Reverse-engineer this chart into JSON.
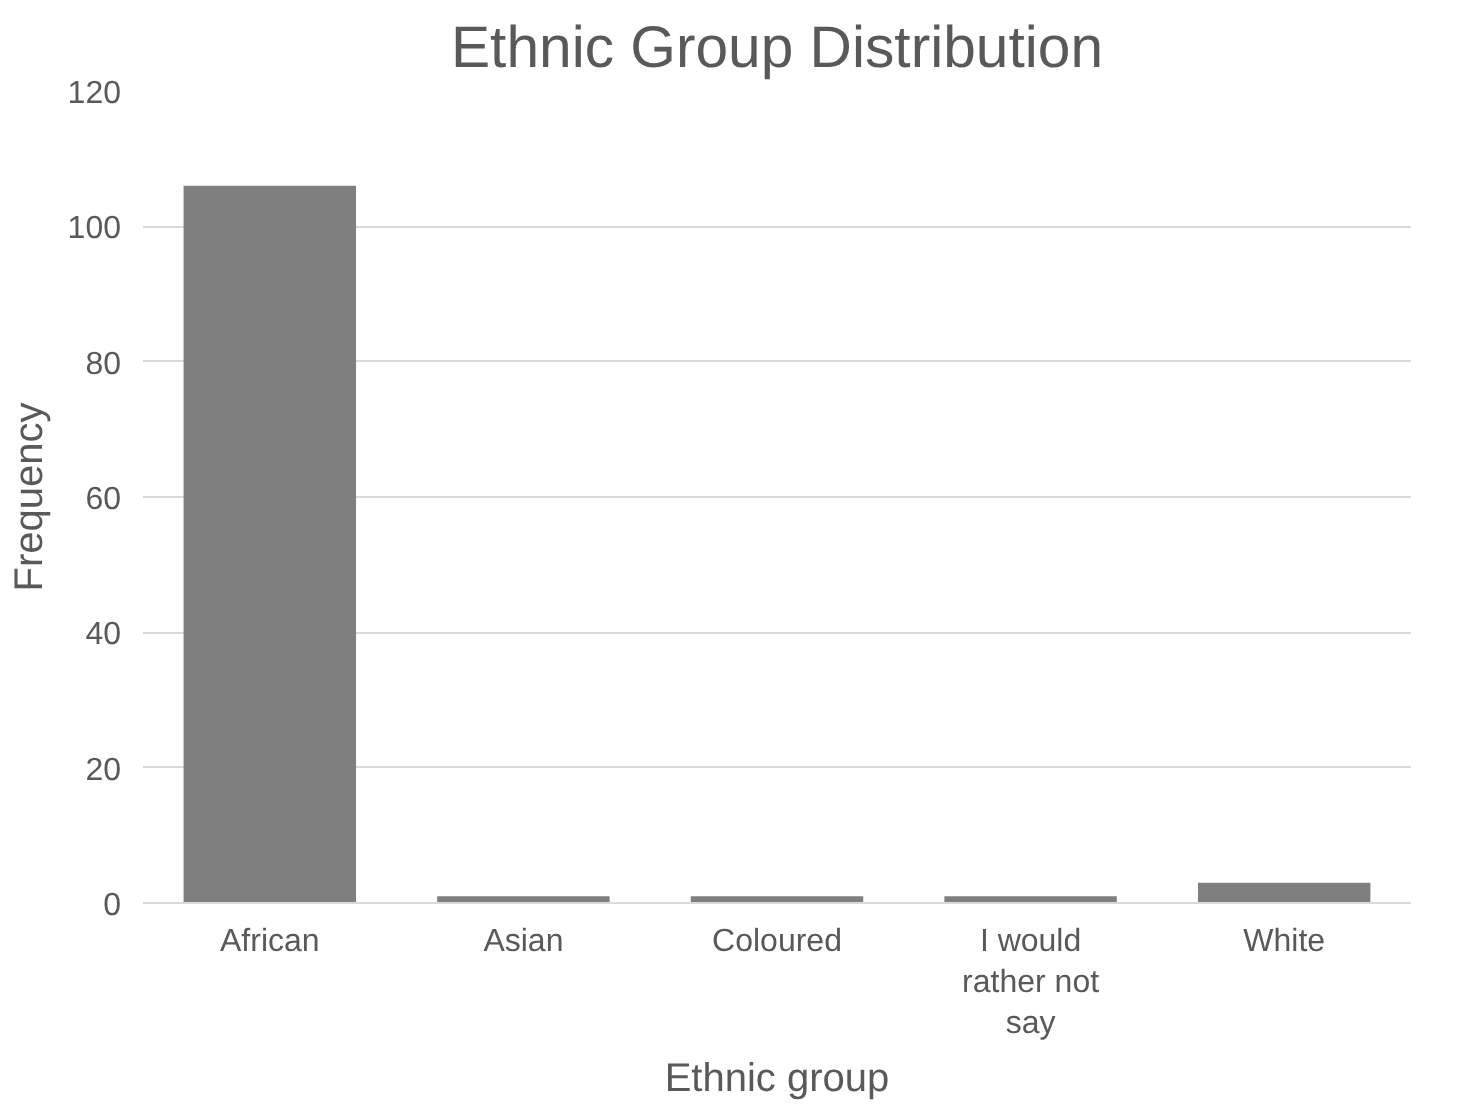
{
  "chart_data": {
    "type": "bar",
    "title": "Ethnic Group Distribution",
    "xlabel": "Ethnic group",
    "ylabel": "Frequency",
    "categories": [
      "African",
      "Asian",
      "Coloured",
      "I would rather not say",
      "White"
    ],
    "values": [
      106,
      1,
      1,
      1,
      3
    ],
    "color": "#7f7f7f",
    "ylim": [
      0,
      120
    ],
    "yticks": [
      0,
      20,
      40,
      60,
      80,
      100,
      120
    ],
    "grid": "y"
  }
}
